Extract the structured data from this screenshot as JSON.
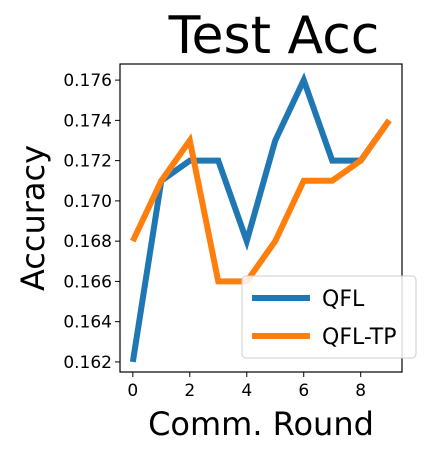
{
  "chart_data": {
    "type": "line",
    "title": "Test Acc",
    "xlabel": "Comm. Round",
    "ylabel": "Accuracy",
    "x": [
      0,
      1,
      2,
      3,
      4,
      5,
      6,
      7,
      8,
      9
    ],
    "xlim": [
      -0.45,
      9.45
    ],
    "ylim": [
      0.1615,
      0.1768
    ],
    "xticks": [
      0,
      2,
      4,
      6,
      8
    ],
    "yticks": [
      0.162,
      0.164,
      0.166,
      0.168,
      0.17,
      0.172,
      0.174,
      0.176
    ],
    "ytick_labels": [
      "0.162",
      "0.164",
      "0.166",
      "0.168",
      "0.170",
      "0.172",
      "0.174",
      "0.176"
    ],
    "grid": false,
    "legend_position": "lower-right",
    "series": [
      {
        "name": "QFL",
        "color": "#1f77b4",
        "values": [
          0.162,
          0.171,
          0.172,
          0.172,
          0.168,
          0.173,
          0.176,
          0.172,
          0.172,
          0.174
        ]
      },
      {
        "name": "QFL-TP",
        "color": "#ff7f0e",
        "values": [
          0.168,
          0.171,
          0.173,
          0.166,
          0.166,
          0.168,
          0.171,
          0.171,
          0.172,
          0.174
        ]
      }
    ]
  }
}
